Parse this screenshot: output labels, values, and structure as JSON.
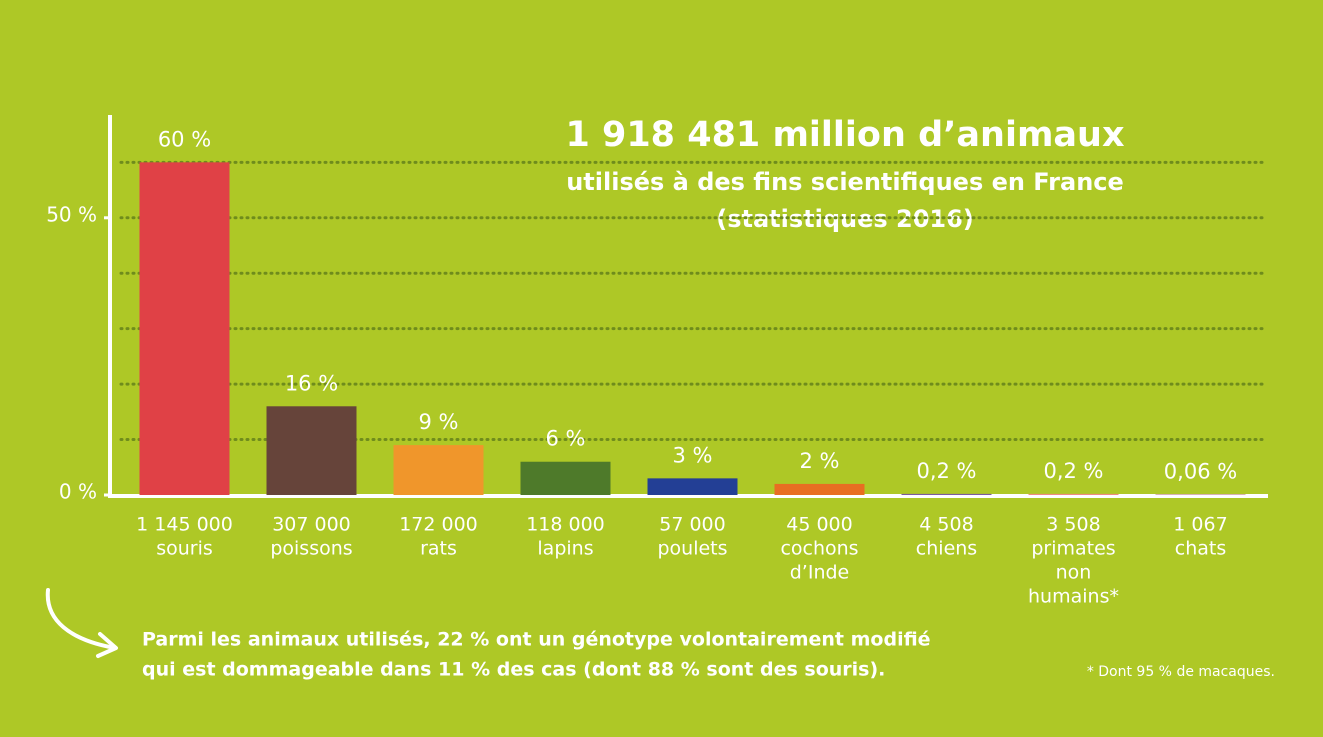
{
  "chart_data": {
    "type": "bar",
    "title": "1 918 481 million d’animaux",
    "subtitle": [
      "utilisés à des fins scientifiques en France",
      "(statistiques 2016)"
    ],
    "categories": [
      [
        "souris"
      ],
      [
        "poissons"
      ],
      [
        "rats"
      ],
      [
        "lapins"
      ],
      [
        "poulets"
      ],
      [
        "cochons",
        "d’Inde"
      ],
      [
        "chiens"
      ],
      [
        "primates",
        "non",
        "humains*"
      ],
      [
        "chats"
      ]
    ],
    "count_labels": [
      "1 145 000",
      "307 000",
      "172 000",
      "118 000",
      "57 000",
      "45 000",
      "4 508",
      "3 508",
      "1 067"
    ],
    "values": [
      60,
      16,
      9,
      6,
      3,
      2,
      0.2,
      0.2,
      0.06
    ],
    "value_labels": [
      "60 %",
      "16 %",
      "9 %",
      "6 %",
      "3 %",
      "2 %",
      "0,2 %",
      "0,2 %",
      "0,06 %"
    ],
    "colors": [
      "#e04146",
      "#66443a",
      "#f0962b",
      "#4e7a2a",
      "#233f95",
      "#e86e22",
      "#7b5a9c",
      "#f08a7e",
      "#8b1717"
    ],
    "ylim": [
      0,
      68
    ],
    "yticks": [
      {
        "value": 0,
        "label": "0 %"
      },
      {
        "value": 50,
        "label": "50 %"
      }
    ],
    "gridlines": [
      10,
      20,
      30,
      40,
      50,
      60
    ],
    "grid": true,
    "notes": [
      "Parmi les animaux utilisés, 22 % ont un génotype volontairement modifié",
      "qui est dommageable dans 11 % des cas (dont 88 % sont des souris)."
    ],
    "footnote": "* Dont 95 % de macaques."
  }
}
